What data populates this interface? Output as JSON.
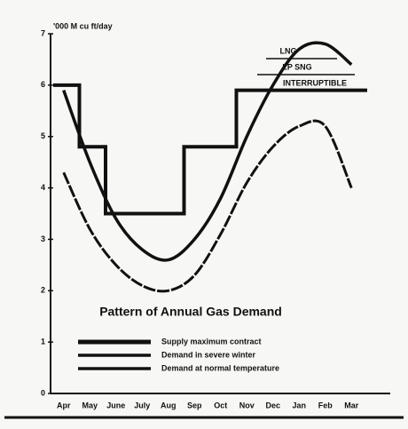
{
  "chart_data": {
    "type": "line",
    "y_label": "'000 M cu ft/day",
    "title": "Pattern of Annual Gas Demand",
    "categories": [
      "Apr",
      "May",
      "June",
      "July",
      "Aug",
      "Sep",
      "Oct",
      "Nov",
      "Dec",
      "Jan",
      "Feb",
      "Mar"
    ],
    "series": [
      {
        "name": "Supply maximum contract",
        "color": "#111",
        "step": true,
        "values": [
          6,
          4.8,
          3.5,
          3.5,
          3.5,
          4.8,
          4.8,
          5.9,
          5.9,
          5.9,
          5.9,
          5.9
        ]
      },
      {
        "name": "Demand in severe winter",
        "color": "#111",
        "values": [
          5.9,
          4.5,
          3.4,
          2.8,
          2.6,
          3.0,
          3.8,
          5.0,
          6.0,
          6.7,
          6.8,
          6.4
        ]
      },
      {
        "name": "Demand at normal temperature",
        "color": "#111",
        "values": [
          4.3,
          3.2,
          2.5,
          2.1,
          2.0,
          2.3,
          3.1,
          4.1,
          4.8,
          5.2,
          5.2,
          4.0
        ]
      }
    ],
    "annotations": [
      "LNG",
      "LP SNG",
      "INTERRUPTIBLE"
    ],
    "ylim": [
      0,
      7
    ],
    "yticks": [
      0,
      1,
      2,
      3,
      4,
      5,
      6,
      7
    ]
  }
}
